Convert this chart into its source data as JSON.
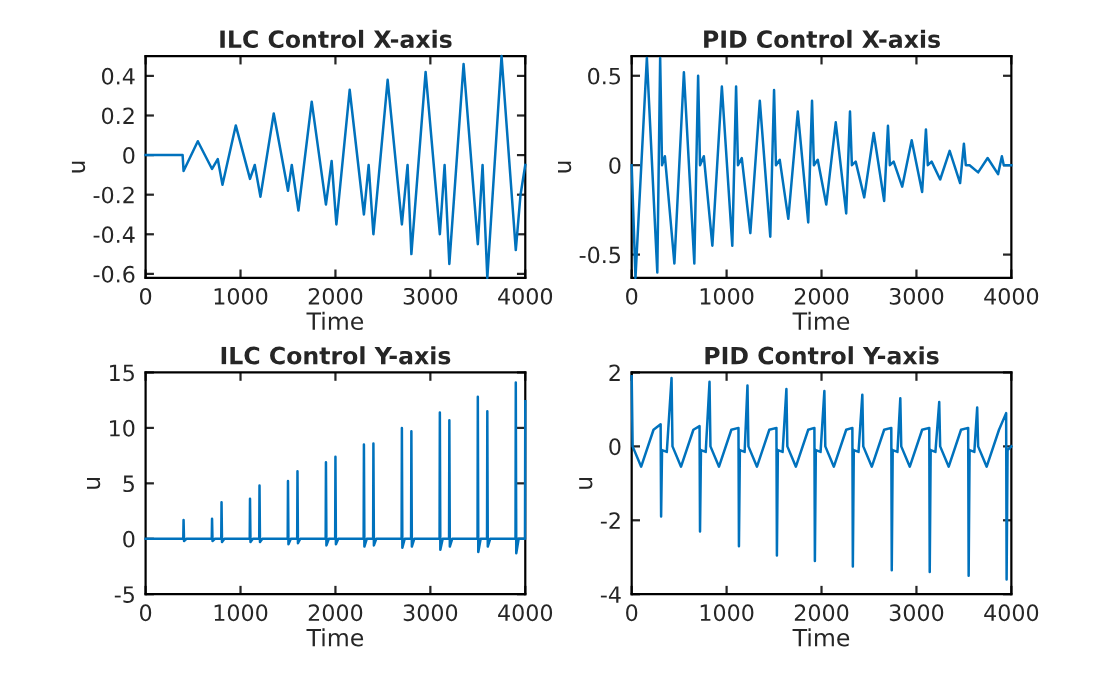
{
  "chart_data": [
    {
      "type": "line",
      "title": "ILC Control X-axis",
      "xlabel": "Time",
      "ylabel": "u",
      "xlim": [
        0,
        4000
      ],
      "xticks": [
        0,
        1000,
        2000,
        3000,
        4000
      ],
      "ylim": [
        -0.62,
        0.5
      ],
      "yticks": [
        -0.6,
        -0.4,
        -0.2,
        0,
        0.2,
        0.4
      ],
      "grid": false,
      "series": [
        {
          "color": "#0072bd",
          "x": [
            0,
            390,
            400,
            550,
            700,
            760,
            810,
            950,
            1100,
            1150,
            1210,
            1350,
            1500,
            1540,
            1610,
            1750,
            1900,
            1960,
            2010,
            2150,
            2300,
            2350,
            2400,
            2550,
            2700,
            2760,
            2800,
            2950,
            3100,
            3150,
            3200,
            3350,
            3500,
            3550,
            3600,
            3750,
            3900,
            3950,
            4000
          ],
          "values": [
            0,
            0,
            -0.08,
            0.07,
            -0.07,
            -0.02,
            -0.15,
            0.15,
            -0.12,
            -0.05,
            -0.21,
            0.21,
            -0.18,
            -0.05,
            -0.28,
            0.27,
            -0.25,
            -0.03,
            -0.35,
            0.33,
            -0.3,
            -0.05,
            -0.4,
            0.38,
            -0.35,
            -0.05,
            -0.5,
            0.42,
            -0.4,
            -0.05,
            -0.55,
            0.46,
            -0.45,
            -0.05,
            -0.62,
            0.5,
            -0.48,
            -0.2,
            -0.05
          ]
        }
      ]
    },
    {
      "type": "line",
      "title": "PID Control X-axis",
      "xlabel": "Time",
      "ylabel": "u",
      "xlim": [
        0,
        4000
      ],
      "xticks": [
        0,
        1000,
        2000,
        3000,
        4000
      ],
      "ylim": [
        -0.63,
        0.61
      ],
      "yticks": [
        -0.5,
        0,
        0.5
      ],
      "grid": false,
      "series": [
        {
          "color": "#0072bd",
          "x": [
            0,
            40,
            160,
            270,
            300,
            320,
            350,
            450,
            550,
            660,
            700,
            720,
            760,
            850,
            950,
            1060,
            1100,
            1120,
            1160,
            1250,
            1350,
            1460,
            1500,
            1520,
            1560,
            1650,
            1750,
            1860,
            1900,
            1920,
            1960,
            2050,
            2150,
            2260,
            2300,
            2320,
            2360,
            2450,
            2550,
            2660,
            2700,
            2720,
            2760,
            2850,
            2950,
            3060,
            3100,
            3120,
            3160,
            3250,
            3350,
            3460,
            3500,
            3520,
            3560,
            3650,
            3750,
            3860,
            3900,
            3920,
            4000
          ],
          "values": [
            0,
            -0.63,
            0.6,
            -0.6,
            0.6,
            0,
            0.05,
            -0.55,
            0.52,
            -0.55,
            0.5,
            0,
            0.05,
            -0.45,
            0.44,
            -0.45,
            0.44,
            0,
            0.04,
            -0.38,
            0.36,
            -0.4,
            0.42,
            0,
            0.03,
            -0.3,
            0.3,
            -0.32,
            0.36,
            0,
            0.03,
            -0.22,
            0.24,
            -0.27,
            0.3,
            0,
            0.02,
            -0.18,
            0.18,
            -0.2,
            0.22,
            0,
            0.02,
            -0.12,
            0.14,
            -0.15,
            0.2,
            0,
            0.02,
            -0.08,
            0.08,
            -0.1,
            0.12,
            0,
            0,
            -0.04,
            0.04,
            -0.05,
            0.05,
            0,
            0
          ]
        }
      ]
    },
    {
      "type": "line",
      "title": "ILC Control Y-axis",
      "xlabel": "Time",
      "ylabel": "u",
      "xlim": [
        0,
        4000
      ],
      "xticks": [
        0,
        1000,
        2000,
        3000,
        4000
      ],
      "ylim": [
        -5,
        15
      ],
      "yticks": [
        -5,
        0,
        5,
        10,
        15
      ],
      "grid": false,
      "series": [
        {
          "color": "#0072bd",
          "x": [
            0,
            397,
            400,
            405,
            430,
            697,
            700,
            705,
            730,
            797,
            800,
            805,
            830,
            1097,
            1100,
            1105,
            1130,
            1197,
            1200,
            1205,
            1230,
            1497,
            1500,
            1505,
            1530,
            1597,
            1600,
            1605,
            1630,
            1897,
            1900,
            1905,
            1930,
            1997,
            2000,
            2005,
            2030,
            2297,
            2300,
            2305,
            2330,
            2397,
            2400,
            2405,
            2430,
            2697,
            2700,
            2705,
            2730,
            2797,
            2800,
            2805,
            2830,
            3097,
            3100,
            3105,
            3130,
            3197,
            3200,
            3205,
            3230,
            3497,
            3500,
            3505,
            3530,
            3597,
            3600,
            3605,
            3630,
            3897,
            3900,
            3905,
            3930,
            3997,
            4000
          ],
          "values": [
            0,
            0,
            1.7,
            -0.2,
            0,
            0,
            1.8,
            -0.2,
            0,
            0,
            3.3,
            -0.3,
            0,
            0,
            3.6,
            -0.3,
            0,
            0,
            4.8,
            -0.3,
            0,
            0,
            5.2,
            -0.5,
            0,
            0,
            6.1,
            -0.4,
            0,
            0,
            6.9,
            -0.6,
            0,
            0,
            7.4,
            -0.5,
            0,
            0,
            8.5,
            -0.7,
            0,
            0,
            8.6,
            -0.6,
            0,
            0,
            10,
            -0.8,
            0,
            0,
            9.7,
            -0.7,
            0,
            0,
            11.4,
            -1,
            0,
            0,
            10.7,
            -0.7,
            0,
            0,
            12.8,
            -1.2,
            0,
            0,
            11.5,
            -0.7,
            0,
            0,
            14.1,
            -1.3,
            0,
            0,
            12.4
          ]
        }
      ]
    },
    {
      "type": "line",
      "title": "PID Control Y-axis",
      "xlabel": "Time",
      "ylabel": "u",
      "xlim": [
        0,
        4000
      ],
      "xticks": [
        0,
        1000,
        2000,
        3000,
        4000
      ],
      "ylim": [
        -4,
        2
      ],
      "yticks": [
        -4,
        -2,
        0,
        2
      ],
      "grid": false,
      "series": [
        {
          "color": "#0072bd",
          "x": [
            0,
            10,
            100,
            230,
            305,
            310,
            320,
            370,
            420,
            430,
            520,
            650,
            715,
            720,
            730,
            780,
            820,
            830,
            920,
            1050,
            1125,
            1130,
            1140,
            1190,
            1220,
            1230,
            1320,
            1450,
            1525,
            1530,
            1540,
            1590,
            1630,
            1640,
            1730,
            1860,
            1925,
            1930,
            1940,
            1990,
            2030,
            2040,
            2130,
            2260,
            2325,
            2330,
            2340,
            2390,
            2430,
            2440,
            2530,
            2660,
            2735,
            2740,
            2750,
            2800,
            2830,
            2840,
            2930,
            3060,
            3135,
            3140,
            3150,
            3200,
            3240,
            3250,
            3340,
            3470,
            3545,
            3550,
            3560,
            3610,
            3640,
            3650,
            3740,
            3870,
            3945,
            3950,
            3960,
            4000
          ],
          "values": [
            1.9,
            0,
            -0.55,
            0.45,
            0.6,
            -1.9,
            -0.1,
            -0.15,
            1.85,
            0,
            -0.55,
            0.45,
            0.55,
            -2.3,
            -0.1,
            -0.15,
            1.75,
            0,
            -0.55,
            0.45,
            0.5,
            -2.7,
            -0.1,
            -0.15,
            1.65,
            0,
            -0.55,
            0.45,
            0.5,
            -2.95,
            -0.1,
            -0.15,
            1.55,
            0,
            -0.55,
            0.45,
            0.5,
            -3.1,
            -0.1,
            -0.15,
            1.5,
            0,
            -0.55,
            0.45,
            0.5,
            -3.25,
            -0.1,
            -0.15,
            1.4,
            0,
            -0.55,
            0.45,
            0.5,
            -3.35,
            -0.1,
            -0.15,
            1.3,
            0,
            -0.55,
            0.45,
            0.5,
            -3.4,
            -0.1,
            -0.15,
            1.2,
            0,
            -0.55,
            0.45,
            0.5,
            -3.5,
            -0.1,
            -0.15,
            1.05,
            0,
            -0.55,
            0.45,
            0.9,
            -3.6,
            -0.1,
            0
          ]
        }
      ]
    }
  ]
}
